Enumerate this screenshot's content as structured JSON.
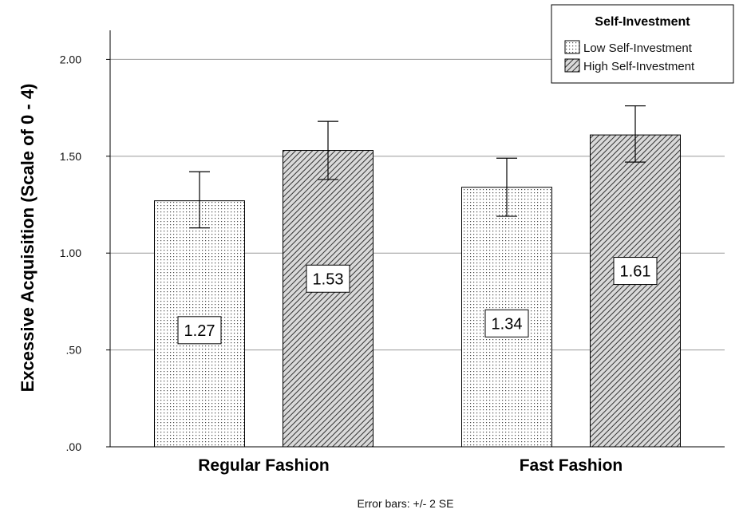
{
  "chart_data": {
    "type": "bar",
    "categories": [
      "Regular Fashion",
      "Fast Fashion"
    ],
    "series": [
      {
        "name": "Low Self-Investment",
        "values": [
          1.27,
          1.34
        ],
        "error_low": [
          1.13,
          1.19
        ],
        "error_high": [
          1.42,
          1.49
        ],
        "pattern": "dots"
      },
      {
        "name": "High Self-Investment",
        "values": [
          1.53,
          1.61
        ],
        "error_low": [
          1.38,
          1.47
        ],
        "error_high": [
          1.68,
          1.76
        ],
        "pattern": "diagonal-hatch"
      }
    ],
    "data_labels": [
      [
        "1.27",
        "1.34"
      ],
      [
        "1.53",
        "1.61"
      ]
    ],
    "ylabel": "Excessive Acquisition (Scale of 0 - 4)",
    "xlabel": "",
    "ylim": [
      0,
      2.15
    ],
    "yticks": [
      0,
      0.5,
      1.0,
      1.5,
      2.0
    ],
    "ytick_labels": [
      ".00",
      ".50",
      "1.00",
      "1.50",
      "2.00"
    ],
    "grid": true,
    "legend": {
      "title": "Self-Investment",
      "placement": "top-right"
    },
    "footnote": "Error bars: +/- 2 SE"
  }
}
